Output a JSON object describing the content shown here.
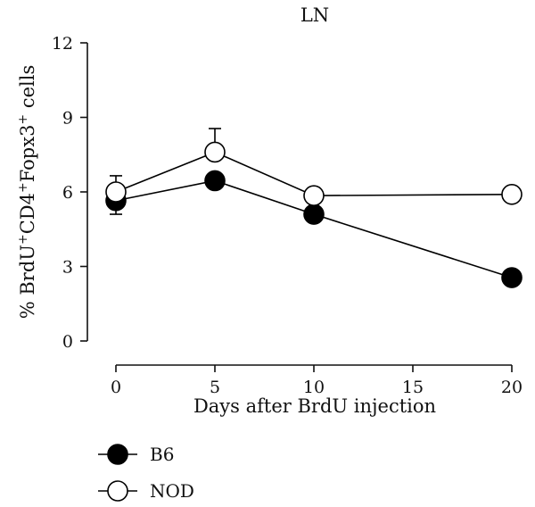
{
  "chart_data": {
    "type": "line",
    "title": "LN",
    "xlabel": "Days after BrdU injection",
    "ylabel": {
      "segments": [
        {
          "text": "% BrdU",
          "sup": false
        },
        {
          "text": "+",
          "sup": true
        },
        {
          "text": "CD4",
          "sup": false
        },
        {
          "text": "+",
          "sup": true
        },
        {
          "text": "Fopx3",
          "sup": false
        },
        {
          "text": "+",
          "sup": true
        },
        {
          "text": " cells",
          "sup": false
        }
      ]
    },
    "xlim": [
      0,
      20
    ],
    "ylim": [
      0,
      12
    ],
    "xticks": [
      0,
      5,
      10,
      15,
      20
    ],
    "yticks": [
      0,
      3,
      6,
      9,
      12
    ],
    "grid": false,
    "legend_position": "bottom-left",
    "series": [
      {
        "name": "B6",
        "marker": "filled-circle",
        "color": "#000000",
        "x": [
          0,
          5,
          10,
          20
        ],
        "y": [
          5.65,
          6.45,
          5.1,
          2.55
        ],
        "err_up": [
          0,
          0,
          0,
          0
        ],
        "err_down": [
          0.55,
          0,
          0,
          0
        ]
      },
      {
        "name": "NOD",
        "marker": "open-circle",
        "color": "#000000",
        "x": [
          0,
          5,
          10,
          20
        ],
        "y": [
          6.0,
          7.6,
          5.85,
          5.9
        ],
        "err_up": [
          0.65,
          0.95,
          0,
          0
        ],
        "err_down": [
          0,
          0,
          0,
          0
        ]
      }
    ]
  }
}
